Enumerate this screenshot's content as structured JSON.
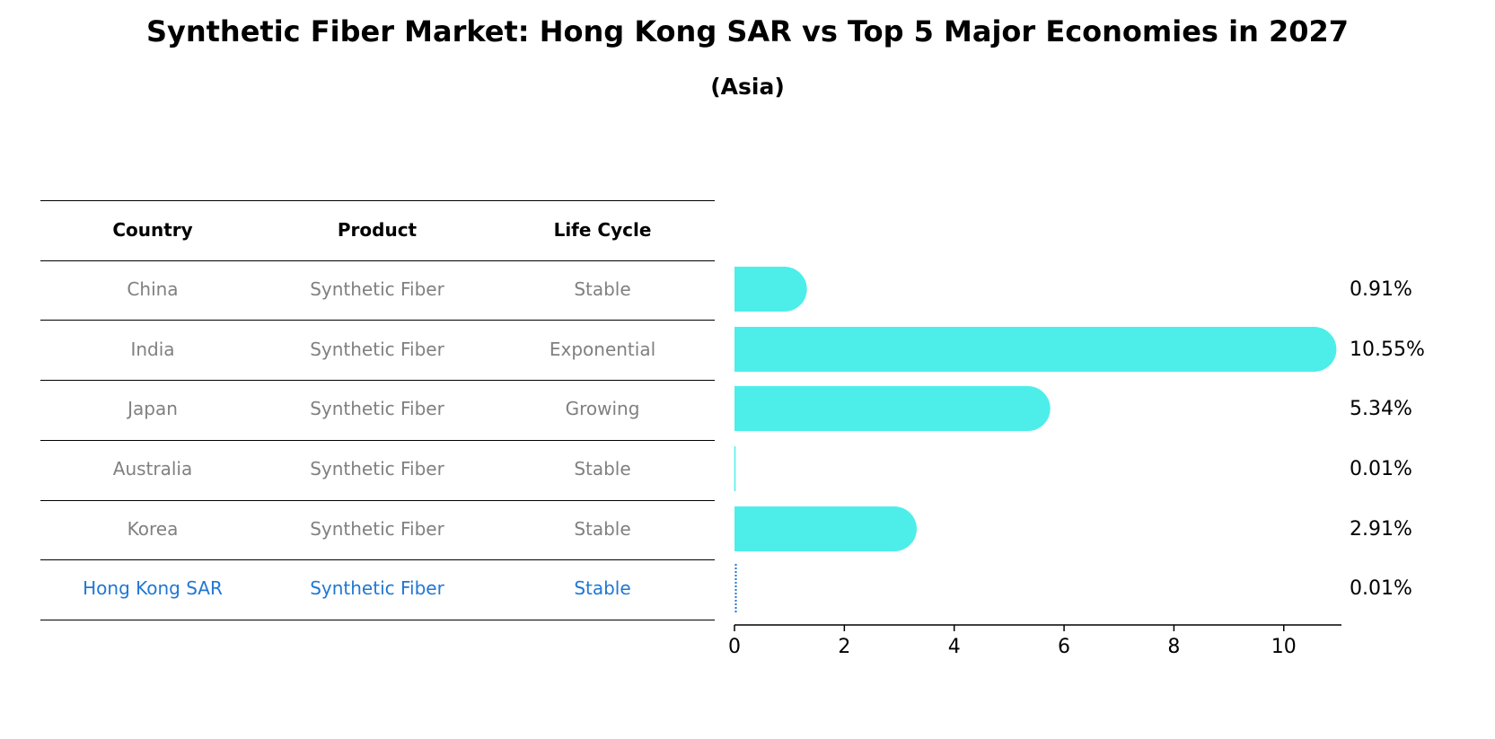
{
  "chart_data": {
    "type": "bar",
    "orientation": "horizontal",
    "title": "Synthetic Fiber Market: Hong Kong SAR vs Top 5 Major Economies in 2027",
    "subtitle": "(Asia)",
    "table": {
      "columns": [
        "Country",
        "Product",
        "Life Cycle"
      ],
      "rows": [
        {
          "country": "China",
          "product": "Synthetic Fiber",
          "life_cycle": "Stable"
        },
        {
          "country": "India",
          "product": "Synthetic Fiber",
          "life_cycle": "Exponential"
        },
        {
          "country": "Japan",
          "product": "Synthetic Fiber",
          "life_cycle": "Growing"
        },
        {
          "country": "Australia",
          "product": "Synthetic Fiber",
          "life_cycle": "Stable"
        },
        {
          "country": "Korea",
          "product": "Synthetic Fiber",
          "life_cycle": "Stable"
        },
        {
          "country": "Hong Kong SAR",
          "product": "Synthetic Fiber",
          "life_cycle": "Stable"
        }
      ],
      "highlight_row": 5
    },
    "categories": [
      "China",
      "India",
      "Japan",
      "Australia",
      "Korea",
      "Hong Kong SAR"
    ],
    "values": [
      0.91,
      10.55,
      5.34,
      0.01,
      2.91,
      0.01
    ],
    "value_labels": [
      "0.91%",
      "10.55%",
      "5.34%",
      "0.01%",
      "2.91%",
      "0.01%"
    ],
    "xlim": [
      0,
      11.05
    ],
    "xticks": [
      0,
      2,
      4,
      6,
      8,
      10
    ],
    "grid": false,
    "colors": {
      "bar": "#4deeea",
      "highlight": "#1f77d4",
      "text_muted": "#808080",
      "text": "#000000"
    }
  }
}
